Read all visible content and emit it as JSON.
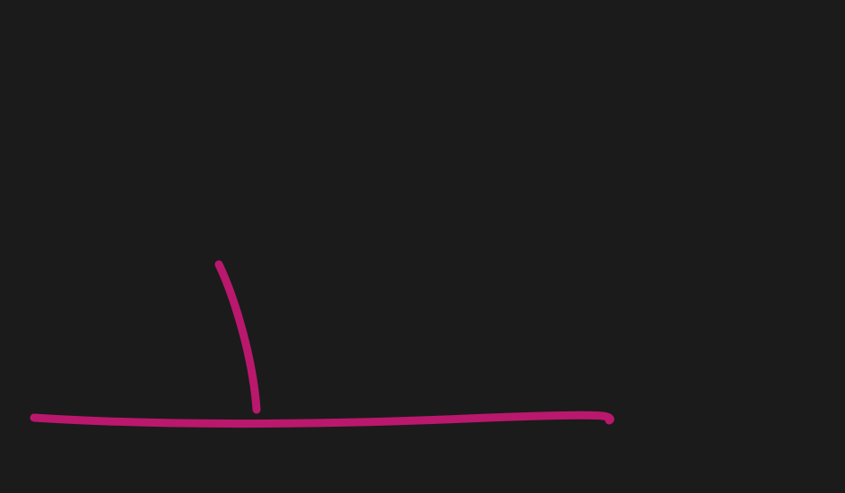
{
  "canvas": {
    "background_color": "#1b1b1b"
  },
  "strokes": {
    "color": "#b9186d",
    "count": 2
  }
}
